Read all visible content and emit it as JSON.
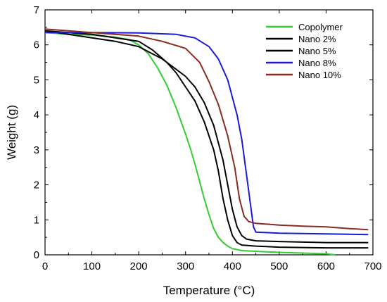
{
  "chart_data": {
    "type": "line",
    "xlabel": "Temperature (°C)",
    "ylabel": "Weight (g)",
    "xlim": [
      0,
      700
    ],
    "ylim": [
      0,
      7
    ],
    "x_ticks": [
      "0",
      "100",
      "200",
      "300",
      "400",
      "500",
      "600",
      "700"
    ],
    "y_ticks": [
      "0",
      "1",
      "2",
      "3",
      "4",
      "5",
      "6",
      "7"
    ],
    "grid": false,
    "legend_position": "top-right",
    "series": [
      {
        "name": "Copolymer",
        "color": "#33cc33",
        "points": [
          [
            0,
            6.35
          ],
          [
            50,
            6.3
          ],
          [
            100,
            6.28
          ],
          [
            150,
            6.22
          ],
          [
            180,
            6.15
          ],
          [
            200,
            6.0
          ],
          [
            220,
            5.75
          ],
          [
            240,
            5.35
          ],
          [
            260,
            4.85
          ],
          [
            280,
            4.2
          ],
          [
            300,
            3.45
          ],
          [
            310,
            3.05
          ],
          [
            320,
            2.6
          ],
          [
            330,
            2.1
          ],
          [
            340,
            1.6
          ],
          [
            350,
            1.15
          ],
          [
            360,
            0.75
          ],
          [
            370,
            0.5
          ],
          [
            380,
            0.35
          ],
          [
            390,
            0.25
          ],
          [
            400,
            0.18
          ],
          [
            420,
            0.12
          ],
          [
            450,
            0.1
          ],
          [
            500,
            0.07
          ],
          [
            550,
            0.05
          ],
          [
            600,
            0.03
          ],
          [
            620,
            0.0
          ]
        ]
      },
      {
        "name": "Nano 2%",
        "color": "#000000",
        "points": [
          [
            0,
            6.4
          ],
          [
            50,
            6.3
          ],
          [
            100,
            6.2
          ],
          [
            150,
            6.1
          ],
          [
            200,
            5.95
          ],
          [
            250,
            5.6
          ],
          [
            280,
            5.3
          ],
          [
            300,
            5.1
          ],
          [
            320,
            4.8
          ],
          [
            340,
            4.35
          ],
          [
            360,
            3.7
          ],
          [
            380,
            2.7
          ],
          [
            390,
            2.0
          ],
          [
            400,
            1.3
          ],
          [
            410,
            0.8
          ],
          [
            420,
            0.55
          ],
          [
            430,
            0.45
          ],
          [
            450,
            0.4
          ],
          [
            500,
            0.38
          ],
          [
            600,
            0.35
          ],
          [
            690,
            0.35
          ]
        ]
      },
      {
        "name": "Nano 5%",
        "color": "#000000",
        "points": [
          [
            0,
            6.4
          ],
          [
            100,
            6.3
          ],
          [
            200,
            6.1
          ],
          [
            230,
            5.85
          ],
          [
            260,
            5.5
          ],
          [
            280,
            5.2
          ],
          [
            300,
            4.8
          ],
          [
            320,
            4.4
          ],
          [
            340,
            3.8
          ],
          [
            360,
            3.0
          ],
          [
            370,
            2.4
          ],
          [
            380,
            1.6
          ],
          [
            390,
            1.0
          ],
          [
            400,
            0.55
          ],
          [
            410,
            0.35
          ],
          [
            420,
            0.28
          ],
          [
            450,
            0.25
          ],
          [
            500,
            0.22
          ],
          [
            600,
            0.2
          ],
          [
            690,
            0.2
          ]
        ]
      },
      {
        "name": "Nano 8%",
        "color": "#1a1ad6",
        "points": [
          [
            0,
            6.35
          ],
          [
            100,
            6.35
          ],
          [
            200,
            6.34
          ],
          [
            280,
            6.3
          ],
          [
            320,
            6.2
          ],
          [
            350,
            5.95
          ],
          [
            370,
            5.6
          ],
          [
            390,
            5.0
          ],
          [
            410,
            4.0
          ],
          [
            420,
            3.3
          ],
          [
            430,
            2.3
          ],
          [
            440,
            1.3
          ],
          [
            445,
            0.8
          ],
          [
            450,
            0.65
          ],
          [
            500,
            0.62
          ],
          [
            600,
            0.6
          ],
          [
            690,
            0.58
          ]
        ]
      },
      {
        "name": "Nano 10%",
        "color": "#8b2a1e",
        "points": [
          [
            0,
            6.45
          ],
          [
            100,
            6.35
          ],
          [
            200,
            6.25
          ],
          [
            250,
            6.1
          ],
          [
            300,
            5.9
          ],
          [
            330,
            5.5
          ],
          [
            350,
            4.95
          ],
          [
            370,
            4.3
          ],
          [
            390,
            3.4
          ],
          [
            405,
            2.5
          ],
          [
            415,
            1.6
          ],
          [
            425,
            1.1
          ],
          [
            435,
            0.95
          ],
          [
            450,
            0.9
          ],
          [
            500,
            0.85
          ],
          [
            550,
            0.82
          ],
          [
            600,
            0.8
          ],
          [
            650,
            0.75
          ],
          [
            690,
            0.72
          ]
        ]
      }
    ]
  }
}
